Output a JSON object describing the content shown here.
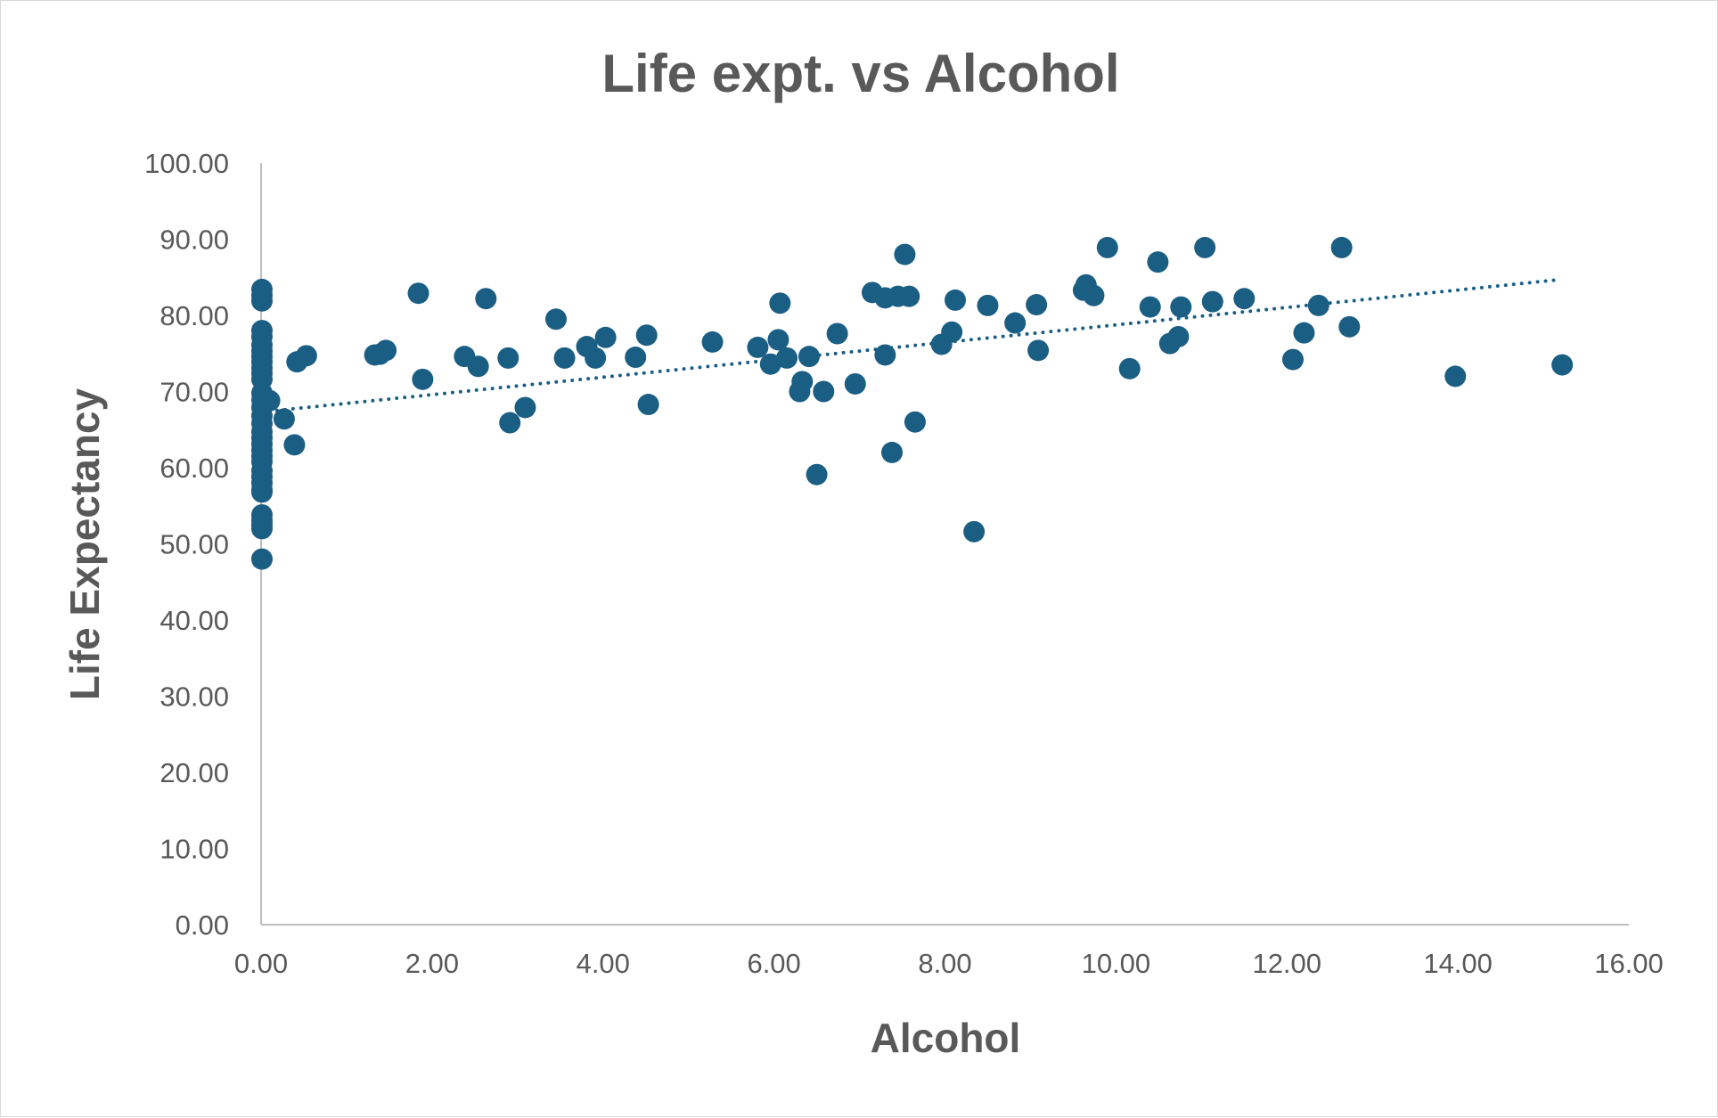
{
  "chart_data": {
    "type": "scatter",
    "title": "Life expt. vs Alcohol",
    "xlabel": "Alcohol",
    "ylabel": "Life Expectancy",
    "xlim": [
      0,
      16
    ],
    "ylim": [
      0,
      100
    ],
    "x_ticks": [
      "0.00",
      "2.00",
      "4.00",
      "6.00",
      "8.00",
      "10.00",
      "12.00",
      "14.00",
      "16.00"
    ],
    "y_ticks": [
      "0.00",
      "10.00",
      "20.00",
      "30.00",
      "40.00",
      "50.00",
      "60.00",
      "70.00",
      "80.00",
      "90.00",
      "100.00"
    ],
    "grid": false,
    "legend": "none",
    "marker_color": "#1b5e84",
    "trendline": {
      "type": "linear",
      "style": "dotted",
      "x": [
        0.0,
        15.2
      ],
      "y": [
        67.3,
        84.7
      ]
    },
    "points": [
      [
        0.01,
        83.4
      ],
      [
        0.01,
        82.6
      ],
      [
        0.01,
        81.9
      ],
      [
        0.01,
        78.0
      ],
      [
        0.01,
        77.2
      ],
      [
        0.01,
        76.1
      ],
      [
        0.01,
        75.3
      ],
      [
        0.01,
        74.6
      ],
      [
        0.01,
        73.9
      ],
      [
        0.01,
        73.1
      ],
      [
        0.01,
        72.4
      ],
      [
        0.01,
        71.6
      ],
      [
        0.01,
        69.8
      ],
      [
        0.01,
        68.9
      ],
      [
        0.01,
        67.9
      ],
      [
        0.01,
        66.8
      ],
      [
        0.01,
        65.8
      ],
      [
        0.01,
        64.7
      ],
      [
        0.01,
        63.9
      ],
      [
        0.01,
        63.1
      ],
      [
        0.01,
        62.3
      ],
      [
        0.01,
        61.5
      ],
      [
        0.01,
        60.8
      ],
      [
        0.01,
        59.6
      ],
      [
        0.01,
        58.8
      ],
      [
        0.01,
        58.0
      ],
      [
        0.01,
        57.1
      ],
      [
        0.01,
        56.8
      ],
      [
        0.01,
        53.8
      ],
      [
        0.01,
        53.1
      ],
      [
        0.01,
        52.5
      ],
      [
        0.01,
        52.0
      ],
      [
        0.01,
        48.0
      ],
      [
        0.1,
        68.8
      ],
      [
        0.27,
        66.4
      ],
      [
        0.39,
        63.0
      ],
      [
        0.42,
        73.9
      ],
      [
        0.53,
        74.7
      ],
      [
        1.33,
        74.8
      ],
      [
        1.39,
        74.9
      ],
      [
        1.46,
        75.4
      ],
      [
        1.84,
        82.9
      ],
      [
        1.89,
        71.6
      ],
      [
        2.38,
        74.6
      ],
      [
        2.54,
        73.3
      ],
      [
        2.63,
        82.2
      ],
      [
        2.89,
        74.4
      ],
      [
        2.91,
        65.9
      ],
      [
        3.09,
        67.9
      ],
      [
        3.45,
        79.5
      ],
      [
        3.55,
        74.4
      ],
      [
        3.81,
        75.9
      ],
      [
        3.91,
        74.4
      ],
      [
        4.03,
        77.1
      ],
      [
        4.38,
        74.5
      ],
      [
        4.51,
        77.4
      ],
      [
        4.53,
        68.3
      ],
      [
        5.28,
        76.5
      ],
      [
        5.81,
        75.8
      ],
      [
        5.96,
        73.6
      ],
      [
        6.05,
        76.8
      ],
      [
        6.07,
        81.6
      ],
      [
        6.15,
        74.4
      ],
      [
        6.3,
        70.0
      ],
      [
        6.33,
        71.3
      ],
      [
        6.41,
        74.6
      ],
      [
        6.5,
        59.1
      ],
      [
        6.58,
        70.0
      ],
      [
        6.74,
        77.6
      ],
      [
        6.95,
        71.0
      ],
      [
        7.15,
        83.0
      ],
      [
        7.3,
        82.3
      ],
      [
        7.3,
        74.8
      ],
      [
        7.38,
        62.0
      ],
      [
        7.45,
        82.5
      ],
      [
        7.53,
        88.0
      ],
      [
        7.58,
        82.5
      ],
      [
        7.65,
        66.0
      ],
      [
        7.96,
        76.2
      ],
      [
        8.08,
        77.8
      ],
      [
        8.12,
        82.0
      ],
      [
        8.34,
        51.6
      ],
      [
        8.5,
        81.3
      ],
      [
        8.82,
        79.0
      ],
      [
        9.07,
        81.4
      ],
      [
        9.09,
        75.4
      ],
      [
        9.62,
        83.3
      ],
      [
        9.65,
        84.0
      ],
      [
        9.74,
        82.6
      ],
      [
        9.9,
        88.9
      ],
      [
        10.16,
        73.0
      ],
      [
        10.4,
        81.1
      ],
      [
        10.49,
        87.0
      ],
      [
        10.63,
        76.3
      ],
      [
        10.73,
        77.2
      ],
      [
        10.76,
        81.1
      ],
      [
        11.04,
        88.9
      ],
      [
        11.13,
        81.8
      ],
      [
        11.5,
        82.2
      ],
      [
        12.07,
        74.2
      ],
      [
        12.2,
        77.7
      ],
      [
        12.37,
        81.3
      ],
      [
        12.64,
        88.9
      ],
      [
        12.73,
        78.5
      ],
      [
        13.97,
        72.0
      ],
      [
        15.22,
        73.5
      ]
    ]
  }
}
